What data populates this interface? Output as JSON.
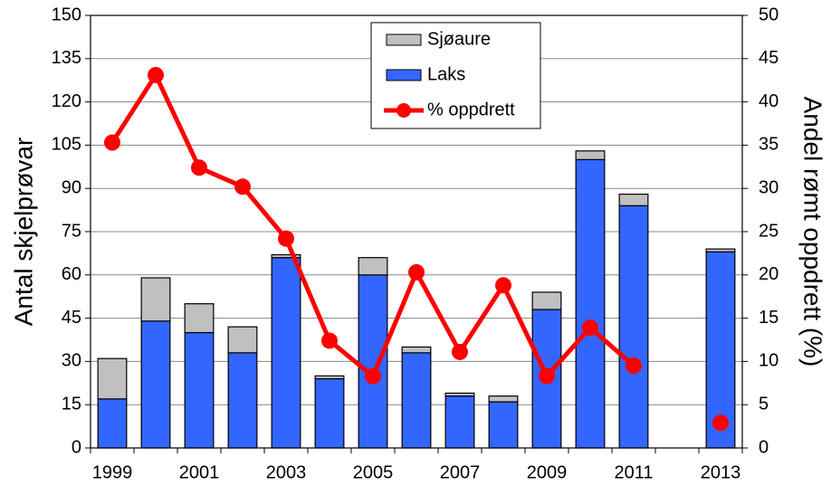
{
  "chart_data": {
    "type": "bar",
    "y_label": "Antal skjelprøvar",
    "y2_label": "Andel rømt oppdrett  (%)",
    "categories": [
      "1999",
      null,
      "2001",
      null,
      "2003",
      null,
      "2005",
      null,
      "2007",
      null,
      "2009",
      null,
      "2011",
      null,
      "2013"
    ],
    "series": [
      {
        "name": "Laks",
        "type": "bar",
        "stacked": true,
        "color": "#3366ff",
        "values": [
          17,
          44,
          40,
          33,
          66,
          24,
          60,
          33,
          18,
          16,
          48,
          100,
          84,
          null,
          68
        ]
      },
      {
        "name": "Sjøaure",
        "type": "bar",
        "stacked": true,
        "color": "#c0c0c0",
        "values": [
          14,
          15,
          10,
          9,
          1,
          1,
          6,
          2,
          1,
          2,
          6,
          3,
          4,
          null,
          1
        ]
      },
      {
        "name": "% oppdrett",
        "type": "line",
        "axis": "y2",
        "color": "#ff0000",
        "values": [
          35.3,
          43.1,
          32.4,
          30.2,
          24.2,
          12.4,
          8.3,
          20.3,
          11.1,
          18.8,
          8.3,
          13.9,
          9.5,
          null,
          2.9
        ]
      }
    ],
    "ylim": [
      0,
      150
    ],
    "yticks": [
      0,
      15,
      30,
      45,
      60,
      75,
      90,
      105,
      120,
      135,
      150
    ],
    "y2lim": [
      0,
      50
    ],
    "y2ticks": [
      0,
      5,
      10,
      15,
      20,
      25,
      30,
      35,
      40,
      45,
      50
    ],
    "grid": true,
    "legend": "top"
  }
}
